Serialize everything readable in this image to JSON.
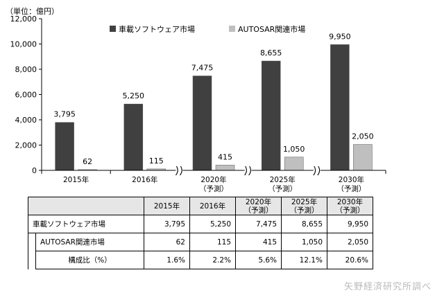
{
  "chart_data": {
    "type": "bar",
    "unit_label": "（単位：億円）",
    "categories": [
      "2015年",
      "2016年",
      "2020年（予測）",
      "2025年（予測）",
      "2030年（予測）"
    ],
    "category_lines": [
      [
        "2015年"
      ],
      [
        "2016年"
      ],
      [
        "2020年",
        "（予測）"
      ],
      [
        "2025年",
        "（予測）"
      ],
      [
        "2030年",
        "（予測）"
      ]
    ],
    "series": [
      {
        "name": "車載ソフトウェア市場",
        "values": [
          3795,
          5250,
          7475,
          8655,
          9950
        ],
        "labels": [
          "3,795",
          "5,250",
          "7,475",
          "8,655",
          "9,950"
        ],
        "color": "#404040"
      },
      {
        "name": "AUTOSAR関連市場",
        "values": [
          62,
          115,
          415,
          1050,
          2050
        ],
        "labels": [
          "62",
          "115",
          "415",
          "1,050",
          "2,050"
        ],
        "color": "#bfbfbf"
      }
    ],
    "ylim": [
      0,
      12000
    ],
    "yticks": [
      0,
      2000,
      4000,
      6000,
      8000,
      10000,
      12000
    ],
    "ytick_labels": [
      "0",
      "2,000",
      "4,000",
      "6,000",
      "8,000",
      "10,000",
      "12,000"
    ],
    "axis_breaks_after": [
      2,
      3,
      4
    ],
    "legend_position": "top",
    "grid": false
  },
  "table": {
    "headers": [
      [
        "2015年"
      ],
      [
        "2016年"
      ],
      [
        "2020年",
        "（予測）"
      ],
      [
        "2025年",
        "（予測）"
      ],
      [
        "2030年",
        "（予測）"
      ]
    ],
    "rows": [
      {
        "label": "車載ソフトウェア市場",
        "values": [
          "3,795",
          "5,250",
          "7,475",
          "8,655",
          "9,950"
        ]
      },
      {
        "label": "AUTOSAR関連市場",
        "values": [
          "62",
          "115",
          "415",
          "1,050",
          "2,050"
        ]
      },
      {
        "label": "構成比（%）",
        "values": [
          "1.6%",
          "2.2%",
          "5.6%",
          "12.1%",
          "20.6%"
        ]
      }
    ]
  },
  "credit": "矢野経済研究所調べ"
}
